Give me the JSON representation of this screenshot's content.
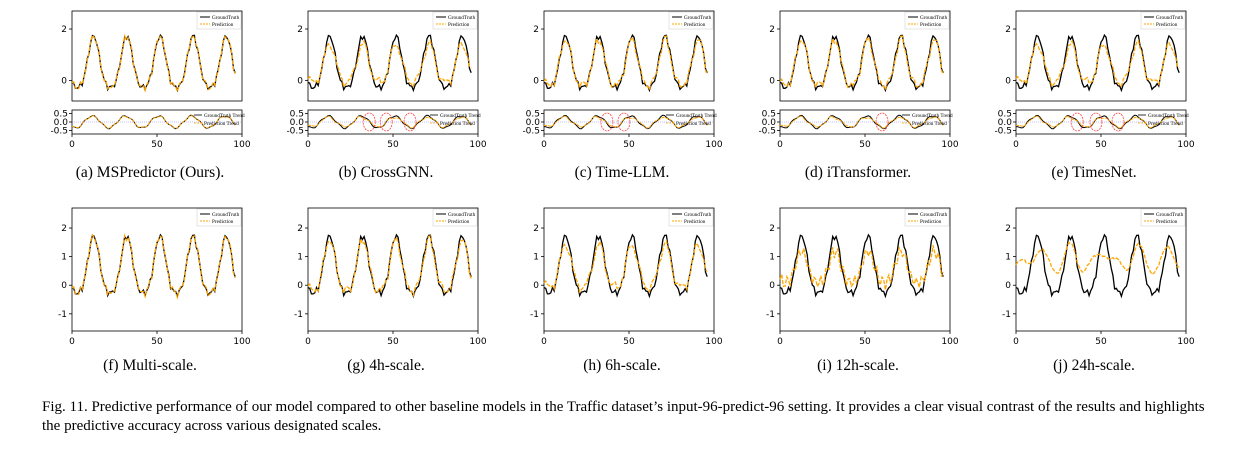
{
  "colors": {
    "ground_truth": "#000000",
    "prediction": "#ffa500",
    "highlight_circle": "#ff4040",
    "trend_zero_line": "#8080ff"
  },
  "legend": {
    "gt": "GroundTruth",
    "pred": "Prediction",
    "gt_trend": "GroundTruth Trend",
    "pred_trend": "Prediction Trend"
  },
  "figure_caption": "Fig. 11.  Predictive performance of our model compared to other baseline models in the Traffic dataset’s input-96-predict-96 setting. It provides a clear visual contrast of the results and highlights the predictive accuracy across various designated scales.",
  "chart_data": [
    {
      "id": "a",
      "caption": "(a)  MSPredictor (Ours).",
      "type": "line",
      "x_ticks": [
        "0",
        "50",
        "100"
      ],
      "y_ticks": [
        "0",
        "2"
      ],
      "ylim": [
        -0.8,
        2.7
      ],
      "pred_style": "close",
      "trend": {
        "y_ticks": [
          "0.5",
          "0.0",
          "-0.5"
        ],
        "ylim": [
          -0.7,
          0.7
        ],
        "circles": []
      }
    },
    {
      "id": "b",
      "caption": "(b)  CrossGNN.",
      "type": "line",
      "x_ticks": [
        "0",
        "50",
        "100"
      ],
      "y_ticks": [
        "0",
        "2"
      ],
      "ylim": [
        -0.8,
        2.7
      ],
      "pred_style": "damped",
      "trend": {
        "y_ticks": [
          "0.5",
          "0.0",
          "-0.5"
        ],
        "ylim": [
          -0.7,
          0.7
        ],
        "circles": [
          36,
          46,
          60
        ]
      }
    },
    {
      "id": "c",
      "caption": "(c)  Time-LLM.",
      "type": "line",
      "x_ticks": [
        "0",
        "50",
        "100"
      ],
      "y_ticks": [
        "0",
        "2"
      ],
      "ylim": [
        -0.8,
        2.7
      ],
      "pred_style": "near",
      "trend": {
        "y_ticks": [
          "0.5",
          "0.0",
          "-0.5"
        ],
        "ylim": [
          -0.7,
          0.7
        ],
        "circles": [
          37,
          47
        ]
      }
    },
    {
      "id": "d",
      "caption": "(d)  iTransformer.",
      "type": "line",
      "x_ticks": [
        "0",
        "50",
        "100"
      ],
      "y_ticks": [
        "0",
        "2"
      ],
      "ylim": [
        -0.8,
        2.7
      ],
      "pred_style": "near",
      "trend": {
        "y_ticks": [
          "0.5",
          "0.0",
          "-0.5"
        ],
        "ylim": [
          -0.7,
          0.7
        ],
        "circles": [
          60
        ]
      }
    },
    {
      "id": "e",
      "caption": "(e)  TimesNet.",
      "type": "line",
      "x_ticks": [
        "0",
        "50",
        "100"
      ],
      "y_ticks": [
        "0",
        "2"
      ],
      "ylim": [
        -0.8,
        2.7
      ],
      "pred_style": "damped",
      "trend": {
        "y_ticks": [
          "0.5",
          "0.0",
          "-0.5"
        ],
        "ylim": [
          -0.7,
          0.7
        ],
        "circles": [
          36,
          47,
          60
        ]
      }
    },
    {
      "id": "f",
      "caption": "(f)  Multi-scale.",
      "type": "line",
      "x_ticks": [
        "0",
        "50",
        "100"
      ],
      "y_ticks": [
        "2",
        "1",
        "0",
        "-1"
      ],
      "ylim": [
        -1.6,
        2.7
      ],
      "pred_style": "close"
    },
    {
      "id": "g",
      "caption": "(g)  4h-scale.",
      "type": "line",
      "x_ticks": [
        "0",
        "50",
        "100"
      ],
      "y_ticks": [
        "2",
        "1",
        "0",
        "-1"
      ],
      "ylim": [
        -1.6,
        2.7
      ],
      "pred_style": "near"
    },
    {
      "id": "h",
      "caption": "(h)  6h-scale.",
      "type": "line",
      "x_ticks": [
        "0",
        "50",
        "100"
      ],
      "y_ticks": [
        "2",
        "1",
        "0",
        "-1"
      ],
      "ylim": [
        -1.6,
        2.7
      ],
      "pred_style": "damped"
    },
    {
      "id": "i",
      "caption": "(i)  12h-scale.",
      "type": "line",
      "x_ticks": [
        "0",
        "50",
        "100"
      ],
      "y_ticks": [
        "2",
        "1",
        "0",
        "-1"
      ],
      "ylim": [
        -1.6,
        2.7
      ],
      "pred_style": "wide"
    },
    {
      "id": "j",
      "caption": "(j)  24h-scale.",
      "type": "line",
      "x_ticks": [
        "0",
        "50",
        "100"
      ],
      "y_ticks": [
        "2",
        "1",
        "0",
        "-1"
      ],
      "ylim": [
        -1.6,
        2.7
      ],
      "pred_style": "flat"
    }
  ]
}
